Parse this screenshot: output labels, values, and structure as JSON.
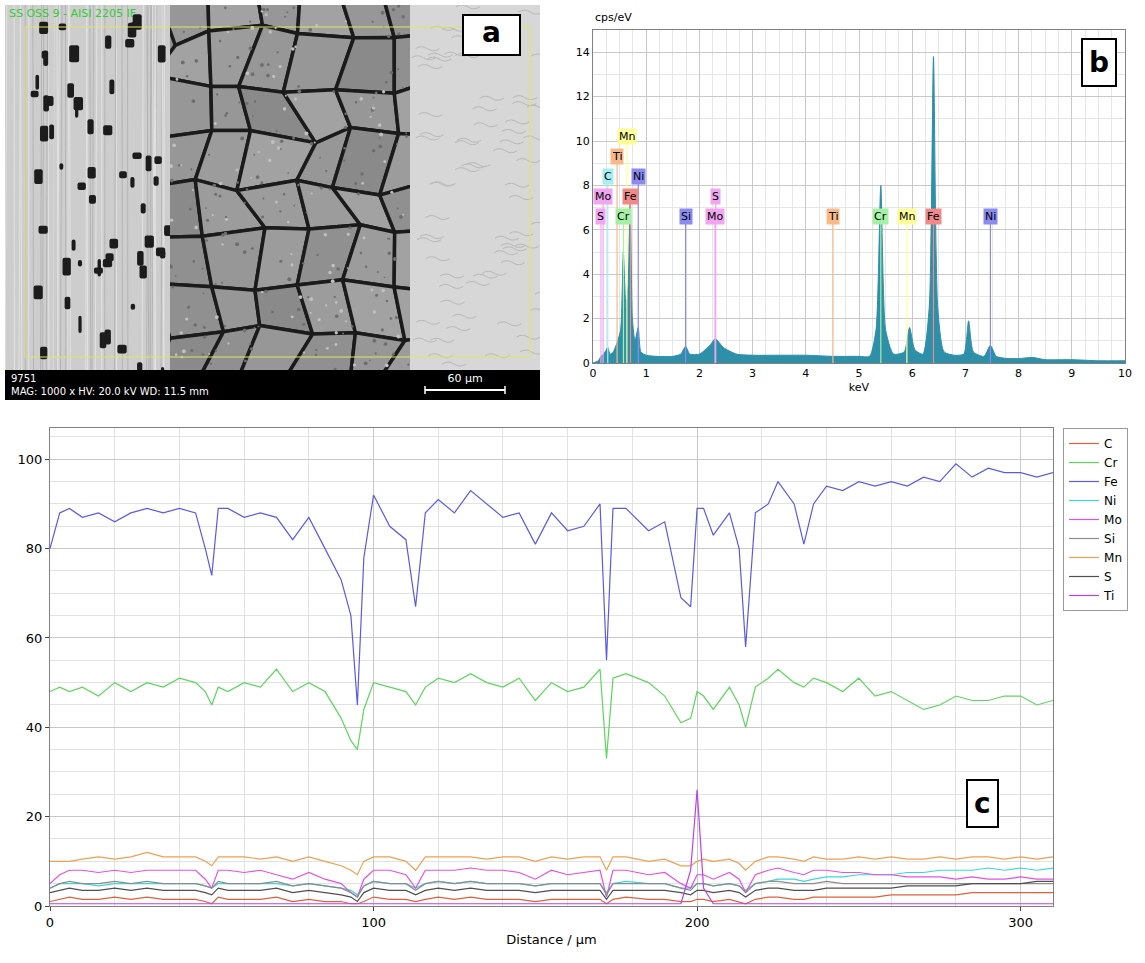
{
  "micrograph": {
    "panel": "a",
    "header": "SS OSS 9 - AISI 2205 IF",
    "image_number": "9751",
    "info": "MAG: 1000 x HV: 20.0 kV WD: 11.5 mm",
    "scale_bar": "60 µm"
  },
  "chart_data": [
    {
      "panel": "b",
      "type": "area",
      "y_label": "cps/eV",
      "x_label": "keV",
      "color": "#2e8fa8",
      "grid": true,
      "xlim": [
        0,
        10
      ],
      "xticks": [
        0,
        1,
        2,
        3,
        4,
        5,
        6,
        7,
        8,
        9,
        10
      ],
      "ylim": [
        0,
        15
      ],
      "yticks": [
        0,
        2,
        4,
        6,
        8,
        10,
        12,
        14
      ],
      "x": [
        0.0,
        0.1,
        0.15,
        0.2,
        0.25,
        0.28,
        0.32,
        0.38,
        0.45,
        0.52,
        0.57,
        0.62,
        0.66,
        0.7,
        0.74,
        0.79,
        0.85,
        0.9,
        1.0,
        1.2,
        1.5,
        1.65,
        1.74,
        1.82,
        2.0,
        2.2,
        2.3,
        2.45,
        2.7,
        3.0,
        3.5,
        4.0,
        4.5,
        5.0,
        5.2,
        5.32,
        5.41,
        5.5,
        5.65,
        5.85,
        5.95,
        6.05,
        6.2,
        6.32,
        6.4,
        6.48,
        6.6,
        6.8,
        6.97,
        7.06,
        7.15,
        7.35,
        7.47,
        7.58,
        7.8,
        8.0,
        8.26,
        8.5,
        9.0,
        9.5,
        10.0
      ],
      "values": [
        0,
        0.1,
        0.3,
        0.4,
        0.6,
        0.7,
        0.4,
        0.5,
        0.9,
        1.5,
        5.0,
        2.5,
        3.5,
        7.4,
        2.0,
        1.0,
        1.6,
        0.5,
        0.35,
        0.3,
        0.3,
        0.4,
        0.75,
        0.4,
        0.4,
        0.8,
        1.1,
        0.7,
        0.4,
        0.35,
        0.35,
        0.35,
        0.3,
        0.3,
        0.3,
        1.5,
        8.0,
        1.5,
        0.4,
        0.5,
        1.6,
        0.6,
        0.4,
        2.5,
        13.8,
        2.5,
        0.5,
        0.35,
        0.4,
        1.9,
        0.5,
        0.3,
        0.8,
        0.3,
        0.2,
        0.2,
        0.25,
        0.15,
        0.15,
        0.1,
        0.1
      ],
      "element_lines": [
        {
          "name": "S",
          "value": 0.15,
          "color": "#f0a6f0"
        },
        {
          "name": "Mo",
          "value": 0.19,
          "color": "#f0a6f0"
        },
        {
          "name": "C",
          "value": 0.277,
          "color": "#a6eef0"
        },
        {
          "name": "Ti",
          "value": 0.452,
          "color": "#f7b98a"
        },
        {
          "name": "Cr",
          "value": 0.573,
          "color": "#a6f0a6"
        },
        {
          "name": "Mn",
          "value": 0.637,
          "color": "#ffff99"
        },
        {
          "name": "Fe",
          "value": 0.705,
          "color": "#f08a8a"
        },
        {
          "name": "Ni",
          "value": 0.851,
          "color": "#8a8af0"
        },
        {
          "name": "Si",
          "value": 1.74,
          "color": "#8a8af0"
        },
        {
          "name": "Mo",
          "value": 2.293,
          "color": "#f0a6f0"
        },
        {
          "name": "S",
          "value": 2.307,
          "color": "#f0a6f0"
        },
        {
          "name": "Ti",
          "value": 4.51,
          "color": "#f7b98a"
        },
        {
          "name": "Cr",
          "value": 5.41,
          "color": "#a6f0a6"
        },
        {
          "name": "Mn",
          "value": 5.9,
          "color": "#ffff99"
        },
        {
          "name": "Fe",
          "value": 6.4,
          "color": "#f08a8a"
        },
        {
          "name": "Ni",
          "value": 7.47,
          "color": "#8a8af0"
        }
      ]
    },
    {
      "panel": "c",
      "type": "line",
      "x_label": "Distance / µm",
      "grid": true,
      "legend": "right",
      "xlim": [
        0,
        310
      ],
      "xticks": [
        0,
        100,
        200,
        300
      ],
      "ylim": [
        0,
        107
      ],
      "yticks": [
        0,
        20,
        40,
        60,
        80,
        100
      ],
      "x": [
        0,
        3,
        6,
        10,
        15,
        20,
        25,
        30,
        35,
        40,
        45,
        48,
        50,
        52,
        55,
        60,
        65,
        70,
        75,
        80,
        85,
        90,
        93,
        95,
        97,
        100,
        105,
        110,
        113,
        116,
        120,
        125,
        130,
        135,
        140,
        145,
        150,
        155,
        160,
        165,
        170,
        172,
        174,
        178,
        185,
        190,
        195,
        198,
        200,
        202,
        205,
        210,
        213,
        215,
        218,
        222,
        225,
        230,
        233,
        236,
        240,
        245,
        250,
        255,
        260,
        265,
        270,
        275,
        280,
        285,
        290,
        295,
        300,
        305,
        310
      ],
      "series": [
        {
          "name": "C",
          "color": "#e0603c",
          "values": [
            1,
            1.5,
            2,
            1.5,
            1.5,
            2,
            1.5,
            2,
            1.5,
            1.5,
            1.5,
            1,
            0.5,
            2,
            1.5,
            1.5,
            1.5,
            2,
            1,
            1.5,
            1,
            1,
            0.5,
            0.5,
            1,
            2,
            1.5,
            1.5,
            1,
            1.5,
            2,
            1.5,
            2,
            1.5,
            1.5,
            1.5,
            1,
            1.5,
            1.5,
            1.5,
            1.5,
            0.5,
            1.5,
            2,
            1.5,
            1.5,
            1,
            1,
            1.5,
            1.5,
            1,
            1.5,
            1,
            0.5,
            1.5,
            2,
            2,
            1.5,
            1.5,
            2,
            2,
            2,
            2,
            2,
            2.5,
            2.5,
            2.5,
            2.5,
            2.5,
            3,
            3,
            3,
            3,
            3,
            3
          ]
        },
        {
          "name": "Cr",
          "color": "#5cd65c",
          "values": [
            48,
            49,
            48,
            49,
            47,
            50,
            48,
            50,
            49,
            51,
            50,
            48,
            45,
            49,
            48,
            50,
            49,
            53,
            48,
            50,
            48,
            42,
            37,
            35,
            44,
            50,
            49,
            48,
            45,
            49,
            51,
            50,
            52,
            50,
            49,
            51,
            46,
            50,
            48,
            49,
            53,
            33,
            51,
            52,
            50,
            47,
            41,
            42,
            48,
            47,
            44,
            49,
            45,
            40,
            49,
            51,
            53,
            50,
            49,
            51,
            50,
            48,
            51,
            47,
            48,
            46,
            44,
            45,
            47,
            46,
            46,
            47,
            47,
            45,
            46
          ]
        },
        {
          "name": "Fe",
          "color": "#5a5ae6",
          "values": [
            80,
            88,
            89,
            87,
            88,
            86,
            88,
            89,
            88,
            89,
            88,
            80,
            74,
            89,
            89,
            87,
            88,
            87,
            82,
            87,
            80,
            73,
            65,
            45,
            78,
            92,
            85,
            82,
            67,
            88,
            91,
            88,
            93,
            90,
            87,
            88,
            81,
            88,
            84,
            85,
            90,
            55,
            89,
            89,
            84,
            86,
            69,
            67,
            89,
            89,
            83,
            88,
            80,
            58,
            88,
            90,
            95,
            90,
            81,
            90,
            94,
            93,
            95,
            94,
            95,
            94,
            96,
            95,
            99,
            96,
            98,
            97,
            97,
            96,
            97
          ]
        },
        {
          "name": "Ni",
          "color": "#3cd8d8",
          "values": [
            4,
            5,
            5,
            5,
            4.5,
            5,
            5,
            5,
            5,
            5,
            5,
            4.5,
            4,
            5,
            5,
            5,
            5,
            5,
            4.5,
            5,
            4.5,
            4,
            3.5,
            2.5,
            4.5,
            5.5,
            5,
            5,
            4,
            5,
            5.5,
            5,
            5.5,
            5,
            5,
            5,
            4.5,
            5,
            5,
            5,
            5,
            3,
            5,
            5.5,
            5,
            5,
            4,
            4,
            5,
            5,
            4.5,
            5,
            4.5,
            3.5,
            5,
            5.5,
            6,
            6,
            5.5,
            6,
            6.5,
            6.5,
            7,
            7,
            7,
            7.5,
            7.5,
            8,
            8,
            8,
            8.5,
            8,
            8.5,
            8,
            8.5
          ]
        },
        {
          "name": "Mo",
          "color": "#e650e6",
          "values": [
            5,
            7,
            8,
            8,
            7.5,
            8,
            7.5,
            8,
            8,
            8,
            8,
            6,
            4,
            8,
            8,
            7.5,
            8,
            7,
            6,
            7.5,
            6,
            5,
            3,
            2,
            6,
            8,
            8,
            7,
            4,
            8,
            8,
            8,
            8.5,
            8,
            8,
            7.5,
            6,
            8,
            7,
            7.5,
            8,
            2,
            8,
            8,
            7,
            7.5,
            5,
            4,
            7,
            7,
            6,
            7.5,
            6,
            3,
            7,
            8,
            8.5,
            7.5,
            7,
            8,
            8,
            7.5,
            7.5,
            7,
            7,
            6.5,
            6.5,
            6.5,
            6,
            6.5,
            6,
            6,
            6.5,
            6,
            6
          ]
        },
        {
          "name": "Si",
          "color": "#8c8c8c",
          "values": [
            4,
            5,
            5.5,
            5,
            5,
            5.5,
            5,
            5.5,
            5,
            5,
            5,
            4.5,
            4,
            5.5,
            5,
            5,
            5,
            5.5,
            4.5,
            5,
            4.5,
            4,
            3,
            2,
            4.5,
            5.5,
            5,
            5,
            3.5,
            5,
            5.5,
            5,
            5.5,
            5,
            5,
            5,
            4.5,
            5,
            5,
            5,
            5,
            2.5,
            5,
            5,
            5,
            5,
            4,
            3.5,
            5,
            5,
            4.5,
            5,
            4.5,
            3,
            5,
            5.5,
            5.5,
            5,
            5,
            5,
            5.5,
            5,
            5,
            5,
            5,
            5,
            5,
            5,
            5,
            5,
            5,
            5,
            5,
            5,
            5
          ]
        },
        {
          "name": "Mn",
          "color": "#f0a050",
          "values": [
            10,
            10,
            10,
            10.5,
            11,
            10.5,
            11,
            12,
            11,
            11,
            11,
            10,
            9,
            11,
            11,
            11,
            10.5,
            11,
            10,
            11,
            10,
            9,
            8,
            7,
            10,
            11,
            11,
            10,
            8,
            11,
            11,
            11,
            11,
            10.5,
            11,
            11,
            10,
            11,
            10.5,
            11,
            11,
            8,
            11,
            11,
            10,
            10.5,
            9,
            9,
            10,
            10.5,
            10,
            10.5,
            9.5,
            8,
            10,
            11,
            11,
            10.5,
            10,
            11,
            10.5,
            10.5,
            11,
            10.5,
            11,
            10.5,
            10.5,
            11,
            10.5,
            11,
            11,
            10.5,
            11,
            10.5,
            11
          ]
        },
        {
          "name": "S",
          "color": "#505050",
          "values": [
            3,
            3.5,
            4,
            3.5,
            3.5,
            4,
            3.5,
            4,
            3.5,
            3.5,
            3.5,
            3,
            2.5,
            4,
            3.5,
            3.5,
            3.5,
            4,
            3,
            3.5,
            3,
            2.5,
            2,
            1,
            3,
            4,
            3.5,
            3.5,
            2.5,
            3.5,
            4,
            3.5,
            4,
            3.5,
            3.5,
            3.5,
            3,
            3.5,
            3.5,
            3.5,
            3.5,
            1.5,
            3.5,
            3.5,
            3.5,
            3.5,
            3,
            2.5,
            3.5,
            3.5,
            3,
            3.5,
            3,
            2,
            3.5,
            4,
            4,
            3.5,
            3.5,
            3.5,
            4,
            4,
            4,
            4,
            4,
            4.5,
            4.5,
            4.5,
            4.5,
            5,
            5,
            5,
            5,
            5.5,
            5.5
          ]
        },
        {
          "name": "Ti",
          "color": "#c040e8",
          "values": [
            0.5,
            0.5,
            0.5,
            0.5,
            0.5,
            0.5,
            0.5,
            0.5,
            0.5,
            0.5,
            0.5,
            0.5,
            0.5,
            0.5,
            0.5,
            0.5,
            0.5,
            0.5,
            0.5,
            0.5,
            0.5,
            0.5,
            0.5,
            0.5,
            0.5,
            0.5,
            0.5,
            0.5,
            0.5,
            0.5,
            0.5,
            0.5,
            0.5,
            0.5,
            0.5,
            0.5,
            0.5,
            0.5,
            0.5,
            0.5,
            0.5,
            0.5,
            0.5,
            0.5,
            0.5,
            0.5,
            0.5,
            8,
            26,
            4,
            0.5,
            0.5,
            0.5,
            0.5,
            0.5,
            0.5,
            0.5,
            0.5,
            0.5,
            0.5,
            0.5,
            0.5,
            0.5,
            0.5,
            0.5,
            0.5,
            0.5,
            0.5,
            0.5,
            0.5,
            0.5,
            0.5,
            0.5,
            0.5,
            0.5
          ]
        }
      ]
    }
  ]
}
